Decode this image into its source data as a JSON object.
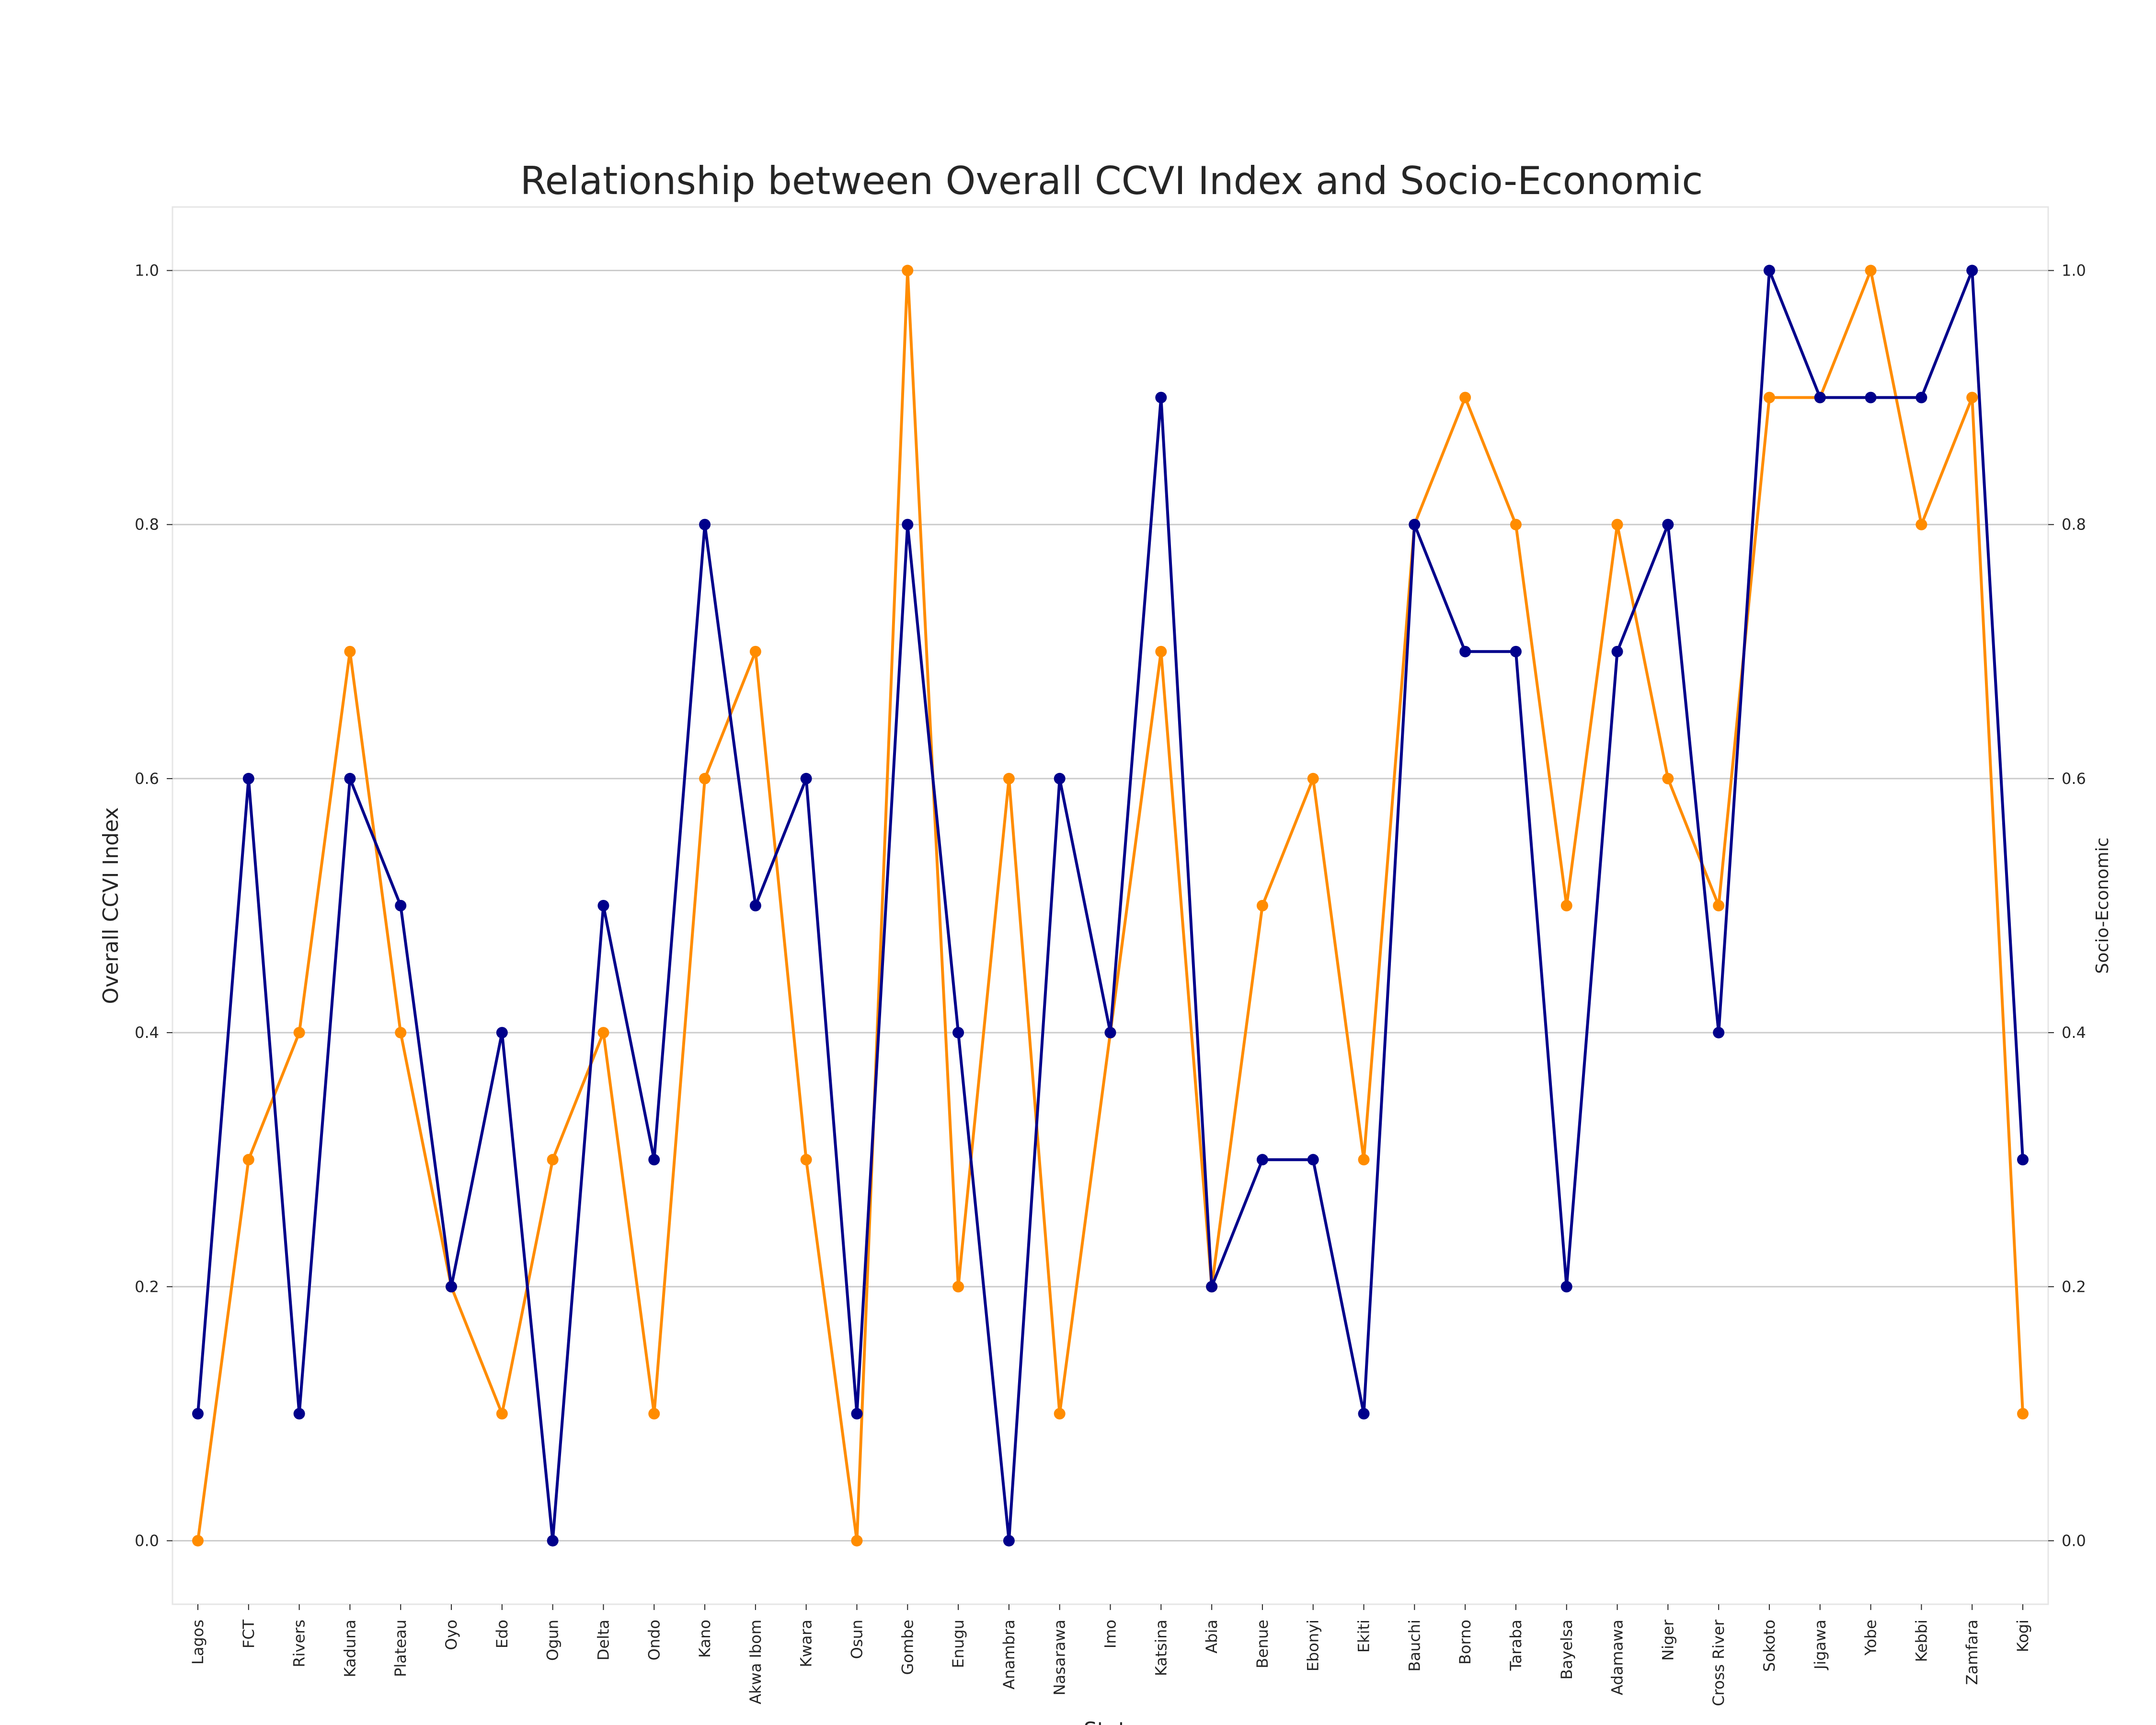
{
  "chart_data": {
    "type": "line",
    "title": "Relationship between Overall CCVI Index and Socio-Economic",
    "xlabel": "State",
    "ylabel": "Overall CCVI Index",
    "ylabel_right": "Socio-Economic",
    "ylim": [
      -0.05,
      1.05
    ],
    "yticks": [
      "0.0",
      "0.2",
      "0.4",
      "0.6",
      "0.8",
      "1.0"
    ],
    "grid": true,
    "categories": [
      "Lagos",
      "FCT",
      "Rivers",
      "Kaduna",
      "Plateau",
      "Oyo",
      "Edo",
      "Ogun",
      "Delta",
      "Ondo",
      "Kano",
      "Akwa Ibom",
      "Kwara",
      "Osun",
      "Gombe",
      "Enugu",
      "Anambra",
      "Nasarawa",
      "Imo",
      "Katsina",
      "Abia",
      "Benue",
      "Ebonyi",
      "Ekiti",
      "Bauchi",
      "Borno",
      "Taraba",
      "Bayelsa",
      "Adamawa",
      "Niger",
      "Cross River",
      "Sokoto",
      "Jigawa",
      "Yobe",
      "Kebbi",
      "Zamfara",
      "Kogi"
    ],
    "series": [
      {
        "axis": "left",
        "color": "#00008b",
        "values": [
          0.1,
          0.6,
          0.1,
          0.6,
          0.5,
          0.2,
          0.4,
          0.0,
          0.5,
          0.3,
          0.8,
          0.5,
          0.6,
          0.1,
          0.8,
          0.4,
          0.0,
          0.6,
          0.4,
          0.9,
          0.2,
          0.3,
          0.3,
          0.1,
          0.8,
          0.7,
          0.7,
          0.2,
          0.7,
          0.8,
          0.4,
          1.0,
          0.9,
          0.9,
          0.9,
          1.0,
          0.3
        ]
      },
      {
        "axis": "right",
        "color": "#ff8c00",
        "values": [
          0.0,
          0.3,
          0.4,
          0.7,
          0.4,
          0.2,
          0.1,
          0.3,
          0.4,
          0.1,
          0.6,
          0.7,
          0.3,
          0.0,
          1.0,
          0.2,
          0.6,
          0.1,
          0.4,
          0.7,
          0.2,
          0.5,
          0.6,
          0.3,
          0.8,
          0.9,
          0.8,
          0.5,
          0.8,
          0.6,
          0.5,
          0.9,
          0.9,
          1.0,
          0.8,
          0.9,
          0.1
        ]
      }
    ]
  }
}
